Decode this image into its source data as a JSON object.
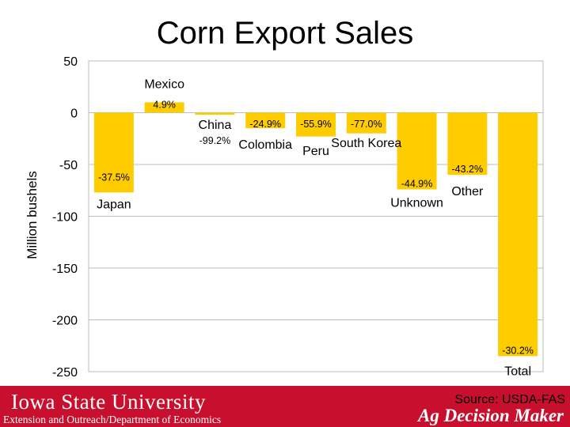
{
  "chart_data": {
    "type": "bar",
    "title": "Corn Export Sales",
    "ylabel": "Million bushels",
    "xlabel": "",
    "ylim": [
      -250,
      50
    ],
    "yticks": [
      50,
      0,
      -50,
      -100,
      -150,
      -200,
      -250
    ],
    "grid": true,
    "categories": [
      "Japan",
      "Mexico",
      "China",
      "Colombia",
      "Peru",
      "South Korea",
      "Unknown",
      "Other",
      "Total"
    ],
    "values": [
      -77,
      10,
      -2,
      -15,
      -23,
      -20,
      -74,
      -60,
      -235
    ],
    "data_labels": [
      "-37.5%",
      "4.9%",
      "-99.2%",
      "-24.9%",
      "-55.9%",
      "-77.0%",
      "-44.9%",
      "-43.2%",
      "-30.2%"
    ],
    "bar_color": "#ffcc00"
  },
  "footer": {
    "university": "Iowa State University",
    "department": "Extension and Outreach/Department of Economics",
    "brand": "Ag Decision Maker",
    "source": "Source: USDA-FAS"
  }
}
